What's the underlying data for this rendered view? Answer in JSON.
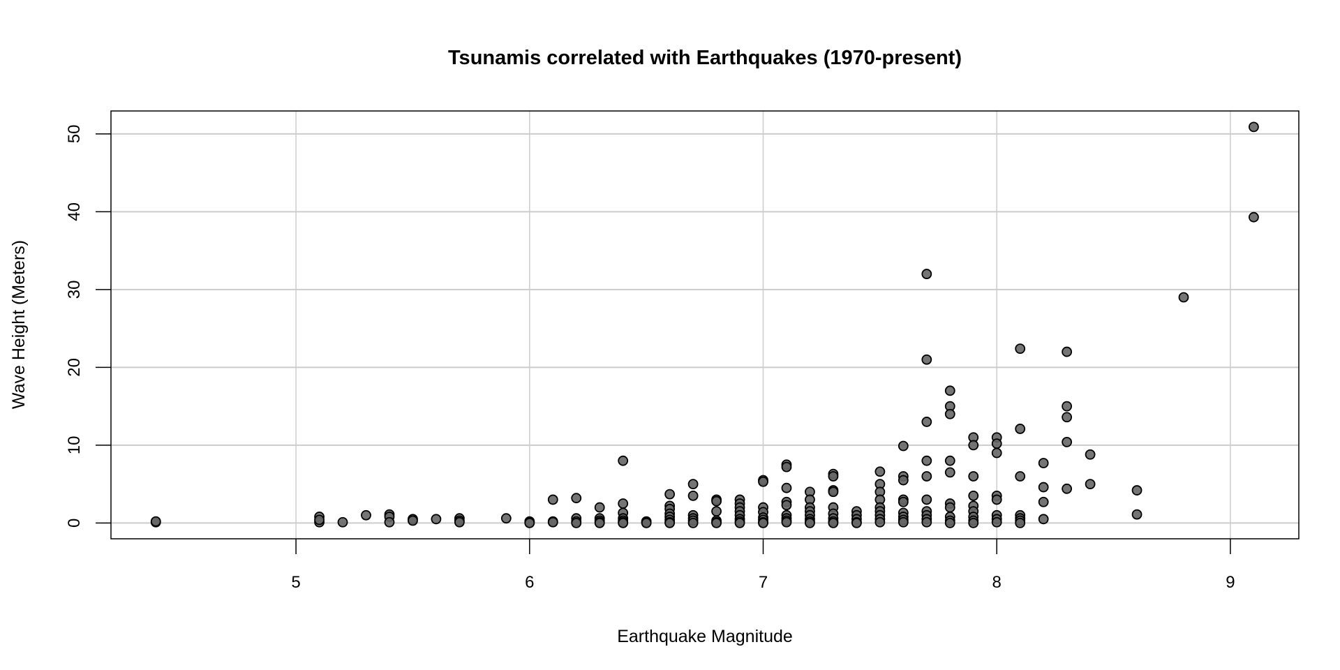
{
  "chart_data": {
    "type": "scatter",
    "title": "Tsunamis correlated with Earthquakes (1970-present)",
    "xlabel": "Earthquake Magnitude",
    "ylabel": "Wave Height (Meters)",
    "xlim": [
      4.208,
      9.293
    ],
    "ylim": [
      -2.03,
      52.95
    ],
    "xticks": [
      "5",
      "6",
      "7",
      "8",
      "9"
    ],
    "yticks": [
      "0",
      "10",
      "20",
      "30",
      "40",
      "50"
    ],
    "grid": true,
    "point_fill": "#666666",
    "point_stroke": "#000000",
    "grid_color": "#cccccc",
    "points": {
      "4.4": [
        0.1,
        0.2
      ],
      "5.1": [
        0.8,
        0.1,
        0.4
      ],
      "5.2": [
        0.1
      ],
      "5.3": [
        1.0
      ],
      "5.4": [
        1.1,
        0.8,
        0.1
      ],
      "5.5": [
        0.5,
        0.3
      ],
      "5.6": [
        0.5
      ],
      "5.7": [
        0.6,
        0.3,
        0.1
      ],
      "5.9": [
        0.6
      ],
      "6.0": [
        0.2,
        0.1,
        0
      ],
      "6.1": [
        3.0,
        0.2,
        0.1
      ],
      "6.2": [
        3.2,
        0.6,
        0.2,
        0
      ],
      "6.3": [
        2.0,
        0.6,
        0.3,
        0.1,
        0
      ],
      "6.4": [
        8.0,
        2.5,
        1.3,
        0.6,
        0.3,
        0.1,
        0
      ],
      "6.5": [
        0.2,
        0.1,
        0
      ],
      "6.6": [
        3.7,
        2.2,
        1.8,
        1.2,
        0.8,
        0.4,
        0.1,
        0
      ],
      "6.7": [
        5.0,
        3.5,
        1.0,
        0.6,
        0.3,
        0
      ],
      "6.8": [
        3.0,
        2.8,
        1.5,
        0.3,
        0.1,
        0
      ],
      "6.9": [
        3.0,
        2.5,
        2.0,
        1.5,
        1.0,
        0.5,
        0.2,
        0
      ],
      "7.0": [
        5.5,
        5.3,
        2.0,
        1.4,
        0.7,
        0.4,
        0.1,
        0
      ],
      "7.1": [
        7.5,
        7.2,
        4.5,
        2.7,
        2.3,
        1.0,
        0.6,
        0.3,
        0.1
      ],
      "7.2": [
        4.0,
        3.0,
        2.0,
        1.5,
        1.0,
        0.5,
        0.2,
        0
      ],
      "7.3": [
        6.3,
        6.0,
        4.2,
        4.0,
        2.0,
        1.2,
        0.6,
        0.2,
        0
      ],
      "7.4": [
        1.5,
        1.0,
        0.5,
        0.1,
        0
      ],
      "7.5": [
        6.6,
        5.0,
        4.0,
        3.0,
        2.0,
        1.5,
        1.0,
        0.5,
        0.1
      ],
      "7.6": [
        9.9,
        6.0,
        5.5,
        3.0,
        2.7,
        1.3,
        0.8,
        0.4,
        0.1
      ],
      "7.7": [
        32,
        21,
        13,
        8,
        6,
        3,
        1.5,
        1.0,
        0.5,
        0.1
      ],
      "7.8": [
        17,
        15,
        14,
        8,
        6.5,
        2.5,
        2.0,
        0.8,
        0.3,
        0
      ],
      "7.9": [
        11,
        10,
        6,
        3.5,
        2.2,
        1.5,
        0.8,
        0.3,
        0
      ],
      "8.0": [
        11,
        10.2,
        9,
        3.5,
        3.0,
        1.0,
        0.5,
        0.1
      ],
      "8.1": [
        22.4,
        12.1,
        6.0,
        1.0,
        0.6,
        0.3,
        0
      ],
      "8.2": [
        7.7,
        4.6,
        2.7,
        0.5
      ],
      "8.3": [
        22,
        15,
        13.6,
        10.4,
        4.4
      ],
      "8.4": [
        8.8,
        5.0
      ],
      "8.6": [
        4.2,
        1.1
      ],
      "8.8": [
        29
      ],
      "9.1": [
        50.9,
        39.3
      ]
    }
  }
}
